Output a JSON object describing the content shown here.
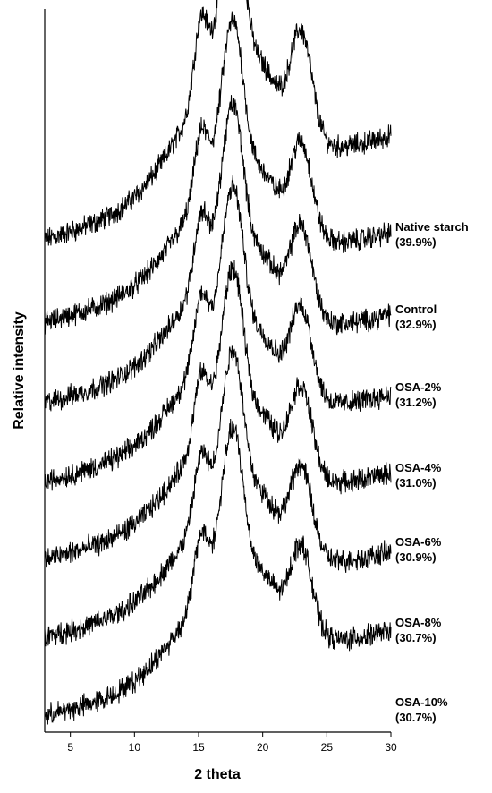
{
  "chart_data": {
    "type": "line",
    "title": "",
    "xlabel": "2 theta",
    "ylabel": "Relative intensity",
    "xlim": [
      3,
      30
    ],
    "xticks": [
      5,
      10,
      15,
      20,
      25,
      30
    ],
    "grid": false,
    "legend": "none",
    "peaks_2theta": [
      15.2,
      17.1,
      18.0,
      23.0
    ],
    "series": [
      {
        "name": "Native starch",
        "value": "(39.9%)",
        "baseline": 0.0,
        "amp": 1.0
      },
      {
        "name": "Control",
        "value": "(32.9%)",
        "baseline": 0.0,
        "amp": 0.86
      },
      {
        "name": "OSA-2%",
        "value": "(31.2%)",
        "baseline": 0.0,
        "amp": 0.85
      },
      {
        "name": "OSA-4%",
        "value": "(31.0%)",
        "baseline": 0.0,
        "amp": 0.84
      },
      {
        "name": "OSA-6%",
        "value": "(30.9%)",
        "baseline": 0.0,
        "amp": 0.83
      },
      {
        "name": "OSA-8%",
        "value": "(30.7%)",
        "baseline": 0.0,
        "amp": 0.82
      },
      {
        "name": "OSA-10%",
        "value": "(30.7%)",
        "baseline": 0.0,
        "amp": 0.82
      }
    ],
    "line_color": "#000000"
  }
}
